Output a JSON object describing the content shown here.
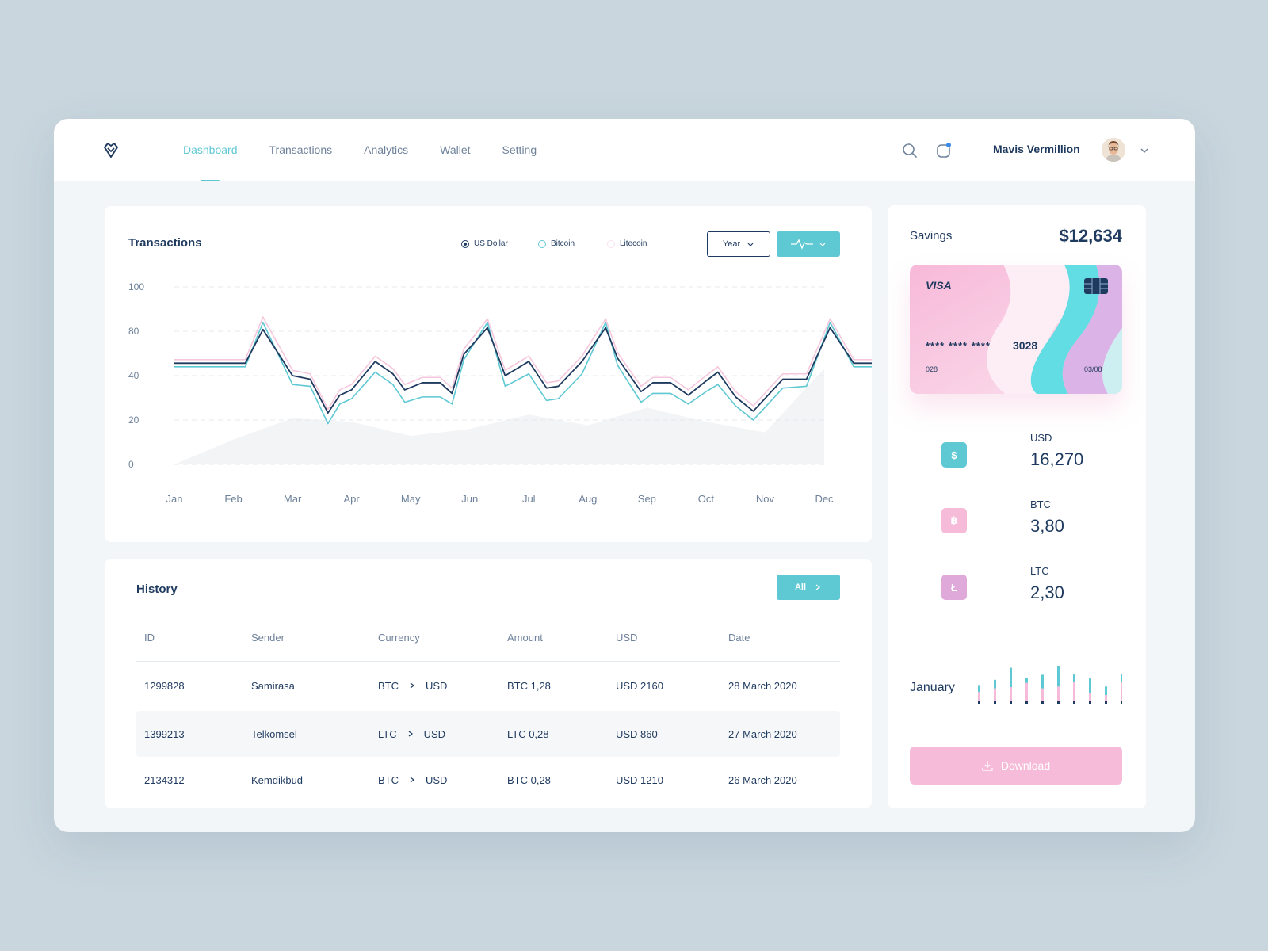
{
  "nav": {
    "items": [
      {
        "label": "Dashboard",
        "active": true
      },
      {
        "label": "Transactions",
        "active": false
      },
      {
        "label": "Analytics",
        "active": false
      },
      {
        "label": "Wallet",
        "active": false
      },
      {
        "label": "Setting",
        "active": false
      }
    ]
  },
  "user": {
    "name": "Mavis Vermillion"
  },
  "transactions": {
    "title": "Transactions",
    "legend": [
      {
        "label": "US Dollar",
        "color": "#1f3a5f"
      },
      {
        "label": "Bitcoin",
        "color": "#5ec8d3"
      },
      {
        "label": "Litecoin",
        "color": "#f6c6dc"
      }
    ],
    "period_label": "Year"
  },
  "chart_data": {
    "type": "line",
    "xlabels": [
      "Jan",
      "Feb",
      "Mar",
      "Apr",
      "May",
      "Jun",
      "Jul",
      "Aug",
      "Sep",
      "Oct",
      "Nov",
      "Dec"
    ],
    "ytick_labels": [
      "100",
      "80",
      "40",
      "20",
      "0"
    ],
    "ylim": [
      0,
      100
    ],
    "grid": true,
    "legend_position": "top-right",
    "x": [
      0,
      0.5,
      1,
      1.2,
      1.5,
      2,
      2.3,
      2.6,
      2.8,
      3,
      3.4,
      3.7,
      3.9,
      4.2,
      4.5,
      4.7,
      4.9,
      5.3,
      5.6,
      6.0,
      6.3,
      6.5,
      6.9,
      7.3,
      7.5,
      7.9,
      8.1,
      8.4,
      8.7,
      9.0,
      9.2,
      9.5,
      9.8,
      10.3,
      10.7,
      11.1,
      11.5,
      11.9
    ],
    "series": [
      {
        "name": "US Dollar",
        "color": "#1f3a5f",
        "values": [
          57,
          57,
          57,
          57,
          76,
          50,
          48,
          29,
          39,
          42,
          58,
          51,
          42,
          46,
          46,
          40,
          62,
          77,
          50,
          58,
          43,
          44,
          58,
          77,
          60,
          41,
          46,
          46,
          39,
          47,
          52,
          38,
          30,
          48,
          48,
          77,
          57,
          57
        ]
      },
      {
        "name": "Bitcoin",
        "color": "#5ec8d3",
        "values": [
          55,
          55,
          55,
          55,
          80,
          45,
          44,
          23,
          34,
          37,
          52,
          45,
          35,
          38,
          38,
          34,
          59,
          80,
          44,
          51,
          36,
          37,
          51,
          80,
          56,
          35,
          40,
          40,
          34,
          41,
          45,
          33,
          25,
          43,
          44,
          80,
          55,
          55
        ]
      },
      {
        "name": "Litecoin",
        "color": "#f6c6dc",
        "values": [
          59,
          59,
          59,
          59,
          83,
          53,
          51,
          31,
          42,
          45,
          61,
          54,
          45,
          49,
          49,
          43,
          65,
          82,
          53,
          61,
          46,
          47,
          61,
          82,
          63,
          44,
          49,
          49,
          42,
          50,
          55,
          41,
          33,
          51,
          51,
          82,
          59,
          59
        ]
      }
    ]
  },
  "history": {
    "title": "History",
    "all_label": "All",
    "columns": [
      "ID",
      "Sender",
      "Currency",
      "Amount",
      "USD",
      "Date"
    ],
    "rows": [
      {
        "id": "1299828",
        "sender": "Samirasa",
        "from": "BTC",
        "to": "USD",
        "amount": "BTC 1,28",
        "usd": "USD 2160",
        "date": "28 March 2020"
      },
      {
        "id": "1399213",
        "sender": "Telkomsel",
        "from": "LTC",
        "to": "USD",
        "amount": "LTC 0,28",
        "usd": "USD 860",
        "date": "27 March 2020"
      },
      {
        "id": "2134312",
        "sender": "Kemdikbud",
        "from": "BTC",
        "to": "USD",
        "amount": "BTC 0,28",
        "usd": "USD 1210",
        "date": "26 March 2020"
      }
    ]
  },
  "savings": {
    "label": "Savings",
    "value": "$12,634",
    "card": {
      "brand": "VISA",
      "masked": "**** **** ****",
      "last4": "3028",
      "left_code": "028",
      "expiry": "03/08"
    },
    "coins": [
      {
        "code": "USD",
        "value": "16,270",
        "symbol": "$",
        "color": "#5ec8d3"
      },
      {
        "code": "BTC",
        "value": "3,80",
        "symbol": "฿",
        "color": "#f6bbd8"
      },
      {
        "code": "LTC",
        "value": "2,30",
        "symbol": "Ł",
        "color": "#dfa9d9"
      }
    ],
    "month": "January",
    "mini_bars": [
      {
        "teal": 0.18,
        "pink": 0.28
      },
      {
        "teal": 0.22,
        "pink": 0.4
      },
      {
        "teal": 0.5,
        "pink": 0.44
      },
      {
        "teal": 0.12,
        "pink": 0.58
      },
      {
        "teal": 0.35,
        "pink": 0.4
      },
      {
        "teal": 0.52,
        "pink": 0.46
      },
      {
        "teal": 0.2,
        "pink": 0.6
      },
      {
        "teal": 0.38,
        "pink": 0.24
      },
      {
        "teal": 0.22,
        "pink": 0.18
      },
      {
        "teal": 0.2,
        "pink": 0.62
      }
    ],
    "download_label": "Download"
  },
  "colors": {
    "accent": "#5ec8d3",
    "navy": "#1f3a5f",
    "pink": "#f6bbd8",
    "purple": "#dfa9d9"
  }
}
